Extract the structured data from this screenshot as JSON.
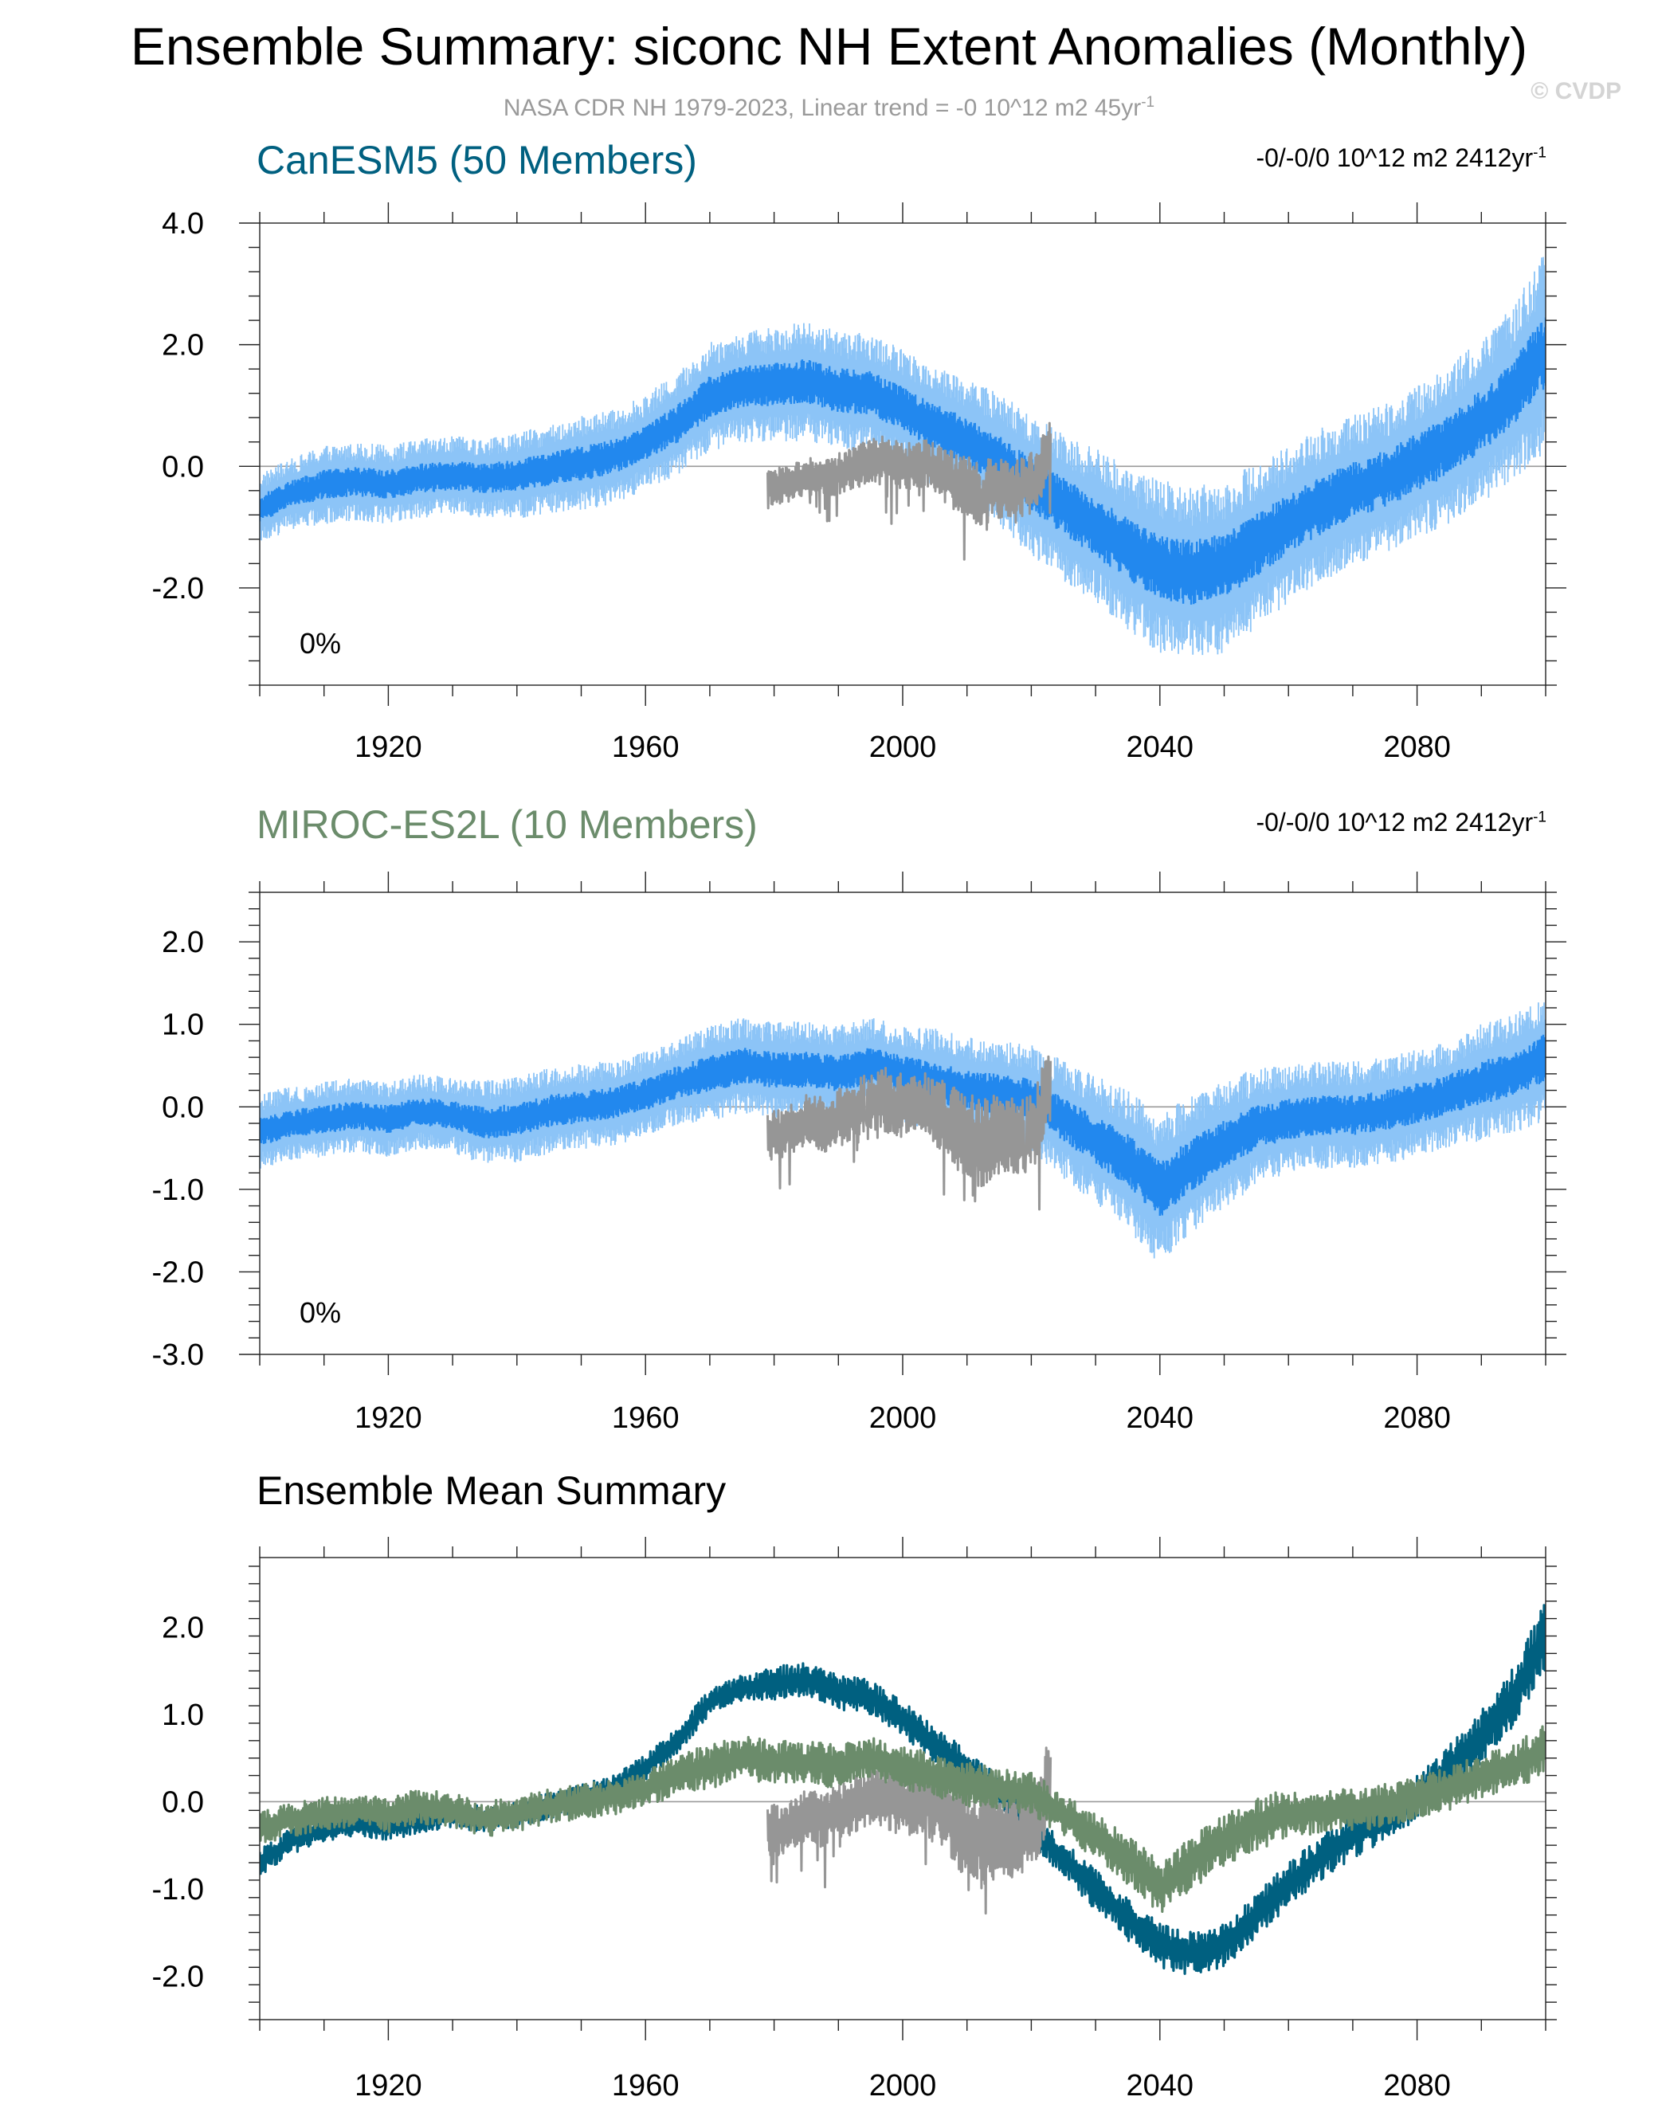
{
  "header": {
    "title": "Ensemble Summary: siconc NH Extent Anomalies (Monthly)",
    "subtitle": "NASA CDR NH 1979-2023, Linear trend = -0 10^12 m2 45yr",
    "subtitle_sup": "-1",
    "copyright": "© CVDP"
  },
  "colors": {
    "canesm_mean": "#2288ee",
    "canesm_band": "#8cc4f7",
    "canesm_summary": "#006080",
    "miroc_title": "#6b8c6b",
    "miroc_summary": "#6b8c6b",
    "observed": "#969696"
  },
  "chart_data": [
    {
      "type": "line",
      "id": "canesm5",
      "title": "CanESM5 (50 Members)",
      "trend_text": "-0/-0/0 10^12 m2 2412yr",
      "trend_sup": "-1",
      "percent_label": "0%",
      "xlim": [
        1900,
        2100
      ],
      "ylim": [
        -3.6,
        4.0
      ],
      "xticks": [
        1920,
        1960,
        2000,
        2040,
        2080
      ],
      "xtick_labels": [
        "1920",
        "1960",
        "2000",
        "2040",
        "2080"
      ],
      "yticks": [
        -2.0,
        0.0,
        2.0,
        4.0
      ],
      "ytick_labels": [
        "-2.0",
        "0.0",
        "2.0",
        "4.0"
      ],
      "series": [
        {
          "name": "CanESM5 ensemble mean",
          "x": [
            1900,
            1905,
            1910,
            1915,
            1920,
            1925,
            1930,
            1935,
            1940,
            1945,
            1950,
            1955,
            1960,
            1965,
            1970,
            1975,
            1980,
            1985,
            1990,
            1995,
            2000,
            2005,
            2010,
            2015,
            2020,
            2025,
            2030,
            2035,
            2040,
            2045,
            2050,
            2055,
            2060,
            2065,
            2070,
            2075,
            2080,
            2085,
            2090,
            2095,
            2100
          ],
          "values": [
            -0.7,
            -0.45,
            -0.3,
            -0.25,
            -0.3,
            -0.2,
            -0.15,
            -0.2,
            -0.15,
            -0.05,
            0.05,
            0.15,
            0.4,
            0.7,
            1.15,
            1.3,
            1.35,
            1.4,
            1.25,
            1.2,
            0.95,
            0.65,
            0.4,
            0.1,
            -0.3,
            -0.65,
            -1.0,
            -1.35,
            -1.65,
            -1.75,
            -1.65,
            -1.3,
            -0.95,
            -0.65,
            -0.4,
            -0.2,
            0.05,
            0.35,
            0.75,
            1.2,
            1.9
          ],
          "spread": [
            0.45,
            0.45,
            0.5,
            0.5,
            0.5,
            0.5,
            0.5,
            0.5,
            0.55,
            0.55,
            0.6,
            0.6,
            0.6,
            0.65,
            0.7,
            0.7,
            0.75,
            0.75,
            0.75,
            0.75,
            0.75,
            0.8,
            0.8,
            0.85,
            0.9,
            0.95,
            1.0,
            1.05,
            1.1,
            1.1,
            1.1,
            1.05,
            1.0,
            1.0,
            0.95,
            0.95,
            1.0,
            1.0,
            1.05,
            1.1,
            1.3
          ]
        },
        {
          "name": "NASA CDR NH observed",
          "x": [
            1979,
            1982,
            1985,
            1988,
            1991,
            1994,
            1997,
            2000,
            2003,
            2006,
            2009,
            2012,
            2015,
            2018,
            2021,
            2023
          ],
          "values": [
            -0.35,
            -0.3,
            -0.15,
            -0.2,
            -0.1,
            0.05,
            0.1,
            0.0,
            0.05,
            -0.1,
            -0.3,
            -0.45,
            -0.35,
            -0.4,
            -0.2,
            0.35
          ],
          "spread": [
            0.3,
            0.3,
            0.3,
            0.35,
            0.35,
            0.35,
            0.4,
            0.4,
            0.4,
            0.45,
            0.5,
            0.55,
            0.5,
            0.5,
            0.5,
            0.5
          ]
        }
      ]
    },
    {
      "type": "line",
      "id": "miroc-es2l",
      "title": "MIROC-ES2L (10 Members)",
      "trend_text": "-0/-0/0 10^12 m2 2412yr",
      "trend_sup": "-1",
      "percent_label": "0%",
      "xlim": [
        1900,
        2100
      ],
      "ylim": [
        -3.0,
        2.6
      ],
      "xticks": [
        1920,
        1960,
        2000,
        2040,
        2080
      ],
      "xtick_labels": [
        "1920",
        "1960",
        "2000",
        "2040",
        "2080"
      ],
      "yticks": [
        -3.0,
        -2.0,
        -1.0,
        0.0,
        1.0,
        2.0
      ],
      "ytick_labels": [
        "-3.0",
        "-2.0",
        "-1.0",
        "0.0",
        "1.0",
        "2.0"
      ],
      "series": [
        {
          "name": "MIROC-ES2L ensemble mean",
          "x": [
            1900,
            1905,
            1910,
            1915,
            1920,
            1925,
            1930,
            1935,
            1940,
            1945,
            1950,
            1955,
            1960,
            1965,
            1970,
            1975,
            1980,
            1985,
            1990,
            1995,
            2000,
            2005,
            2010,
            2015,
            2020,
            2025,
            2030,
            2035,
            2040,
            2045,
            2050,
            2055,
            2060,
            2065,
            2070,
            2075,
            2080,
            2085,
            2090,
            2095,
            2100
          ],
          "values": [
            -0.3,
            -0.2,
            -0.15,
            -0.1,
            -0.15,
            -0.05,
            -0.1,
            -0.2,
            -0.15,
            -0.05,
            0.0,
            0.05,
            0.15,
            0.3,
            0.4,
            0.5,
            0.45,
            0.45,
            0.4,
            0.5,
            0.4,
            0.3,
            0.2,
            0.15,
            0.1,
            -0.15,
            -0.4,
            -0.65,
            -1.0,
            -0.7,
            -0.45,
            -0.25,
            -0.15,
            -0.1,
            -0.1,
            -0.05,
            0.05,
            0.15,
            0.3,
            0.4,
            0.6
          ],
          "spread": [
            0.35,
            0.35,
            0.35,
            0.35,
            0.35,
            0.35,
            0.35,
            0.4,
            0.4,
            0.4,
            0.4,
            0.4,
            0.4,
            0.4,
            0.45,
            0.45,
            0.45,
            0.45,
            0.45,
            0.45,
            0.45,
            0.5,
            0.5,
            0.5,
            0.5,
            0.55,
            0.6,
            0.65,
            0.7,
            0.65,
            0.6,
            0.55,
            0.5,
            0.5,
            0.5,
            0.5,
            0.5,
            0.5,
            0.55,
            0.55,
            0.6
          ]
        },
        {
          "name": "NASA CDR NH observed",
          "x": [
            1979,
            1982,
            1985,
            1988,
            1991,
            1994,
            1997,
            2000,
            2003,
            2006,
            2009,
            2012,
            2015,
            2018,
            2021,
            2023
          ],
          "values": [
            -0.35,
            -0.3,
            -0.15,
            -0.2,
            -0.1,
            0.05,
            0.1,
            0.0,
            0.05,
            -0.1,
            -0.3,
            -0.45,
            -0.35,
            -0.4,
            -0.2,
            0.35
          ],
          "spread": [
            0.3,
            0.3,
            0.3,
            0.35,
            0.35,
            0.35,
            0.4,
            0.4,
            0.4,
            0.45,
            0.5,
            0.55,
            0.5,
            0.5,
            0.5,
            0.5
          ]
        }
      ]
    },
    {
      "type": "line",
      "id": "ensemble-mean-summary",
      "title": "Ensemble Mean Summary",
      "xlim": [
        1900,
        2100
      ],
      "ylim": [
        -2.5,
        2.8
      ],
      "xticks": [
        1920,
        1960,
        2000,
        2040,
        2080
      ],
      "xtick_labels": [
        "1920",
        "1960",
        "2000",
        "2040",
        "2080"
      ],
      "yticks": [
        -2.0,
        -1.0,
        0.0,
        1.0,
        2.0
      ],
      "ytick_labels": [
        "-2.0",
        "-1.0",
        "0.0",
        "1.0",
        "2.0"
      ],
      "series": [
        {
          "name": "CanESM5 ensemble mean",
          "x": [
            1900,
            1905,
            1910,
            1915,
            1920,
            1925,
            1930,
            1935,
            1940,
            1945,
            1950,
            1955,
            1960,
            1965,
            1970,
            1975,
            1980,
            1985,
            1990,
            1995,
            2000,
            2005,
            2010,
            2015,
            2020,
            2025,
            2030,
            2035,
            2040,
            2045,
            2050,
            2055,
            2060,
            2065,
            2070,
            2075,
            2080,
            2085,
            2090,
            2095,
            2100
          ],
          "values": [
            -0.7,
            -0.45,
            -0.3,
            -0.25,
            -0.3,
            -0.2,
            -0.15,
            -0.2,
            -0.15,
            -0.05,
            0.05,
            0.15,
            0.4,
            0.7,
            1.15,
            1.3,
            1.35,
            1.4,
            1.25,
            1.2,
            0.95,
            0.65,
            0.4,
            0.1,
            -0.3,
            -0.65,
            -1.0,
            -1.35,
            -1.65,
            -1.75,
            -1.65,
            -1.3,
            -0.95,
            -0.65,
            -0.4,
            -0.2,
            0.05,
            0.35,
            0.75,
            1.2,
            1.9
          ],
          "spread": [
            0.15,
            0.15,
            0.15,
            0.15,
            0.15,
            0.15,
            0.15,
            0.15,
            0.15,
            0.15,
            0.15,
            0.15,
            0.15,
            0.15,
            0.15,
            0.15,
            0.2,
            0.2,
            0.2,
            0.2,
            0.2,
            0.2,
            0.2,
            0.2,
            0.2,
            0.2,
            0.25,
            0.25,
            0.25,
            0.25,
            0.25,
            0.25,
            0.25,
            0.25,
            0.25,
            0.25,
            0.25,
            0.3,
            0.3,
            0.35,
            0.4
          ]
        },
        {
          "name": "MIROC-ES2L ensemble mean",
          "x": [
            1900,
            1905,
            1910,
            1915,
            1920,
            1925,
            1930,
            1935,
            1940,
            1945,
            1950,
            1955,
            1960,
            1965,
            1970,
            1975,
            1980,
            1985,
            1990,
            1995,
            2000,
            2005,
            2010,
            2015,
            2020,
            2025,
            2030,
            2035,
            2040,
            2045,
            2050,
            2055,
            2060,
            2065,
            2070,
            2075,
            2080,
            2085,
            2090,
            2095,
            2100
          ],
          "values": [
            -0.3,
            -0.2,
            -0.15,
            -0.1,
            -0.15,
            -0.05,
            -0.1,
            -0.2,
            -0.15,
            -0.05,
            0.0,
            0.05,
            0.15,
            0.3,
            0.4,
            0.5,
            0.45,
            0.45,
            0.4,
            0.5,
            0.4,
            0.3,
            0.2,
            0.15,
            0.1,
            -0.15,
            -0.4,
            -0.65,
            -1.0,
            -0.7,
            -0.45,
            -0.25,
            -0.15,
            -0.1,
            -0.1,
            -0.05,
            0.05,
            0.15,
            0.3,
            0.4,
            0.6
          ],
          "spread": [
            0.2,
            0.2,
            0.2,
            0.2,
            0.2,
            0.2,
            0.2,
            0.2,
            0.2,
            0.2,
            0.2,
            0.2,
            0.2,
            0.25,
            0.25,
            0.25,
            0.25,
            0.25,
            0.25,
            0.25,
            0.25,
            0.25,
            0.25,
            0.25,
            0.25,
            0.25,
            0.25,
            0.3,
            0.3,
            0.3,
            0.3,
            0.3,
            0.3,
            0.25,
            0.25,
            0.25,
            0.25,
            0.25,
            0.25,
            0.25,
            0.3
          ]
        },
        {
          "name": "NASA CDR NH observed",
          "x": [
            1979,
            1982,
            1985,
            1988,
            1991,
            1994,
            1997,
            2000,
            2003,
            2006,
            2009,
            2012,
            2015,
            2018,
            2021,
            2023
          ],
          "values": [
            -0.35,
            -0.3,
            -0.15,
            -0.2,
            -0.1,
            0.05,
            0.1,
            0.0,
            0.05,
            -0.1,
            -0.3,
            -0.45,
            -0.35,
            -0.4,
            -0.2,
            0.35
          ],
          "spread": [
            0.3,
            0.3,
            0.3,
            0.35,
            0.35,
            0.35,
            0.4,
            0.4,
            0.4,
            0.45,
            0.5,
            0.55,
            0.5,
            0.5,
            0.5,
            0.5
          ]
        }
      ]
    }
  ]
}
